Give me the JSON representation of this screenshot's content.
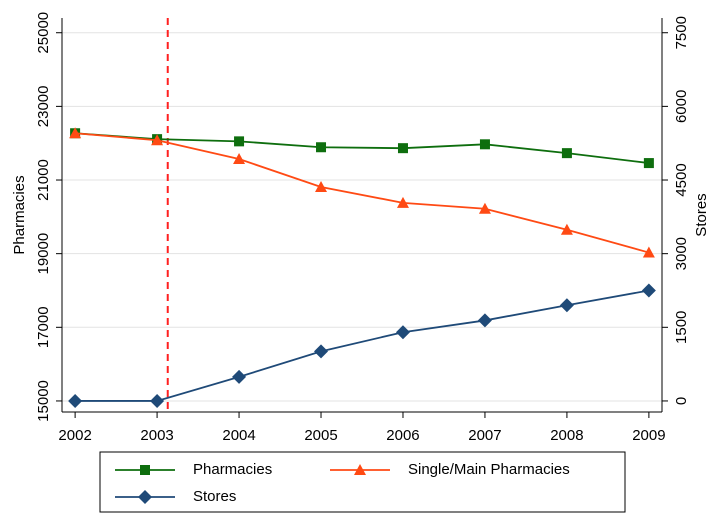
{
  "chart_data": {
    "type": "line",
    "x": [
      2002,
      2003,
      2004,
      2005,
      2006,
      2007,
      2008,
      2009
    ],
    "xlim": [
      2001.84,
      2009.16
    ],
    "xticks": [
      2002,
      2003,
      2004,
      2005,
      2006,
      2007,
      2008,
      2009
    ],
    "ylabel": "Pharmacies",
    "y2label": "Stores",
    "ylim": [
      14700,
      25400
    ],
    "yticks": [
      15000,
      17000,
      19000,
      21000,
      23000,
      25000
    ],
    "y2lim": [
      -225,
      7800
    ],
    "y2ticks": [
      0,
      1500,
      3000,
      4500,
      6000,
      7500
    ],
    "grid": true,
    "vline": {
      "x": 2003.13,
      "color": "#ff2020"
    },
    "legend": "bottom",
    "series": [
      {
        "name": "Pharmacies",
        "color": "#0e6e0e",
        "marker": "square",
        "values": [
          22270,
          22110,
          22050,
          21890,
          21865,
          21970,
          21730,
          21460
        ]
      },
      {
        "name": "Single/Main Pharmacies",
        "color": "#ff4a14",
        "marker": "triangle",
        "values": [
          22270,
          22080,
          21570,
          20810,
          20380,
          20220,
          19650,
          19030
        ]
      },
      {
        "name": "Stores",
        "color": "#1f4a78",
        "marker": "diamond",
        "axis": "y2",
        "values": [
          0,
          0,
          490,
          1010,
          1400,
          1640,
          1950,
          2250
        ]
      }
    ]
  }
}
